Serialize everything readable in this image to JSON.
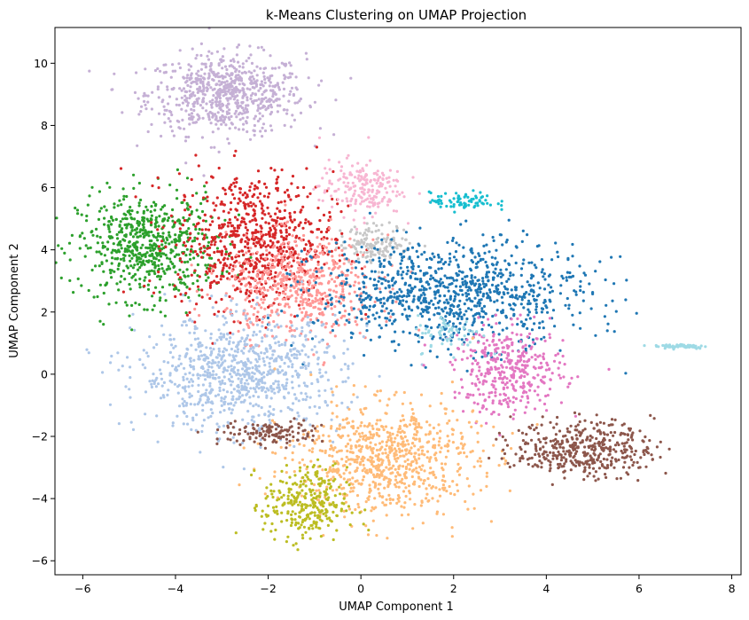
{
  "chart_data": {
    "type": "scatter",
    "title": "k-Means Clustering on UMAP Projection",
    "xlabel": "UMAP Component 1",
    "ylabel": "UMAP Component 2",
    "xlim": [
      -6.6,
      8.2
    ],
    "ylim": [
      -6.45,
      11.15
    ],
    "xticks": [
      -6,
      -4,
      -2,
      0,
      2,
      4,
      6,
      8
    ],
    "yticks": [
      -6,
      -4,
      -2,
      0,
      2,
      4,
      6,
      8,
      10
    ],
    "xtick_labels": [
      "−6",
      "−4",
      "−2",
      "0",
      "2",
      "4",
      "6",
      "8"
    ],
    "ytick_labels": [
      "−6",
      "−4",
      "−2",
      "0",
      "2",
      "4",
      "6",
      "8",
      "10"
    ],
    "grid": false,
    "legend": "none",
    "clusters": [
      {
        "color": "#c5b0d5",
        "center": [
          -2.9,
          9.0
        ],
        "spread": [
          0.85,
          0.65
        ],
        "n": 700
      },
      {
        "color": "#2ca02c",
        "center": [
          -4.6,
          4.1
        ],
        "spread": [
          0.75,
          0.85
        ],
        "n": 650
      },
      {
        "color": "#d62728",
        "center": [
          -2.3,
          4.3
        ],
        "spread": [
          0.85,
          1.1
        ],
        "n": 750
      },
      {
        "color": "#f7b6d2",
        "center": [
          0.0,
          6.0
        ],
        "spread": [
          0.45,
          0.45
        ],
        "n": 200
      },
      {
        "color": "#17becf",
        "center": [
          2.2,
          5.55
        ],
        "spread": [
          0.35,
          0.15
        ],
        "n": 80
      },
      {
        "color": "#c7c7c7",
        "center": [
          0.35,
          4.2
        ],
        "spread": [
          0.4,
          0.3
        ],
        "n": 150
      },
      {
        "color": "#ff9896",
        "center": [
          -1.3,
          2.8
        ],
        "spread": [
          0.8,
          0.8
        ],
        "n": 550
      },
      {
        "color": "#1f77b4",
        "center": [
          2.0,
          2.6
        ],
        "spread": [
          1.45,
          0.85
        ],
        "n": 950
      },
      {
        "color": "#aec7e8",
        "center": [
          -2.6,
          0.0
        ],
        "spread": [
          1.1,
          0.9
        ],
        "n": 850
      },
      {
        "color": "#e377c2",
        "center": [
          3.2,
          0.1
        ],
        "spread": [
          0.6,
          0.7
        ],
        "n": 380
      },
      {
        "color": "#ffbb78",
        "center": [
          0.5,
          -2.7
        ],
        "spread": [
          1.0,
          0.9
        ],
        "n": 800
      },
      {
        "color": "#8c564b",
        "center": [
          4.8,
          -2.4
        ],
        "spread": [
          0.75,
          0.45
        ],
        "n": 420
      },
      {
        "color": "#8c564b",
        "center": [
          -1.9,
          -1.9
        ],
        "spread": [
          0.55,
          0.2
        ],
        "n": 130
      },
      {
        "color": "#bcbd22",
        "center": [
          -1.2,
          -4.2
        ],
        "spread": [
          0.45,
          0.6
        ],
        "n": 300
      },
      {
        "color": "#9edae5",
        "center": [
          6.9,
          0.9
        ],
        "spread": [
          0.3,
          0.04
        ],
        "n": 60
      },
      {
        "color": "#9edae5",
        "center": [
          1.9,
          1.3
        ],
        "spread": [
          0.35,
          0.3
        ],
        "n": 60
      }
    ]
  }
}
